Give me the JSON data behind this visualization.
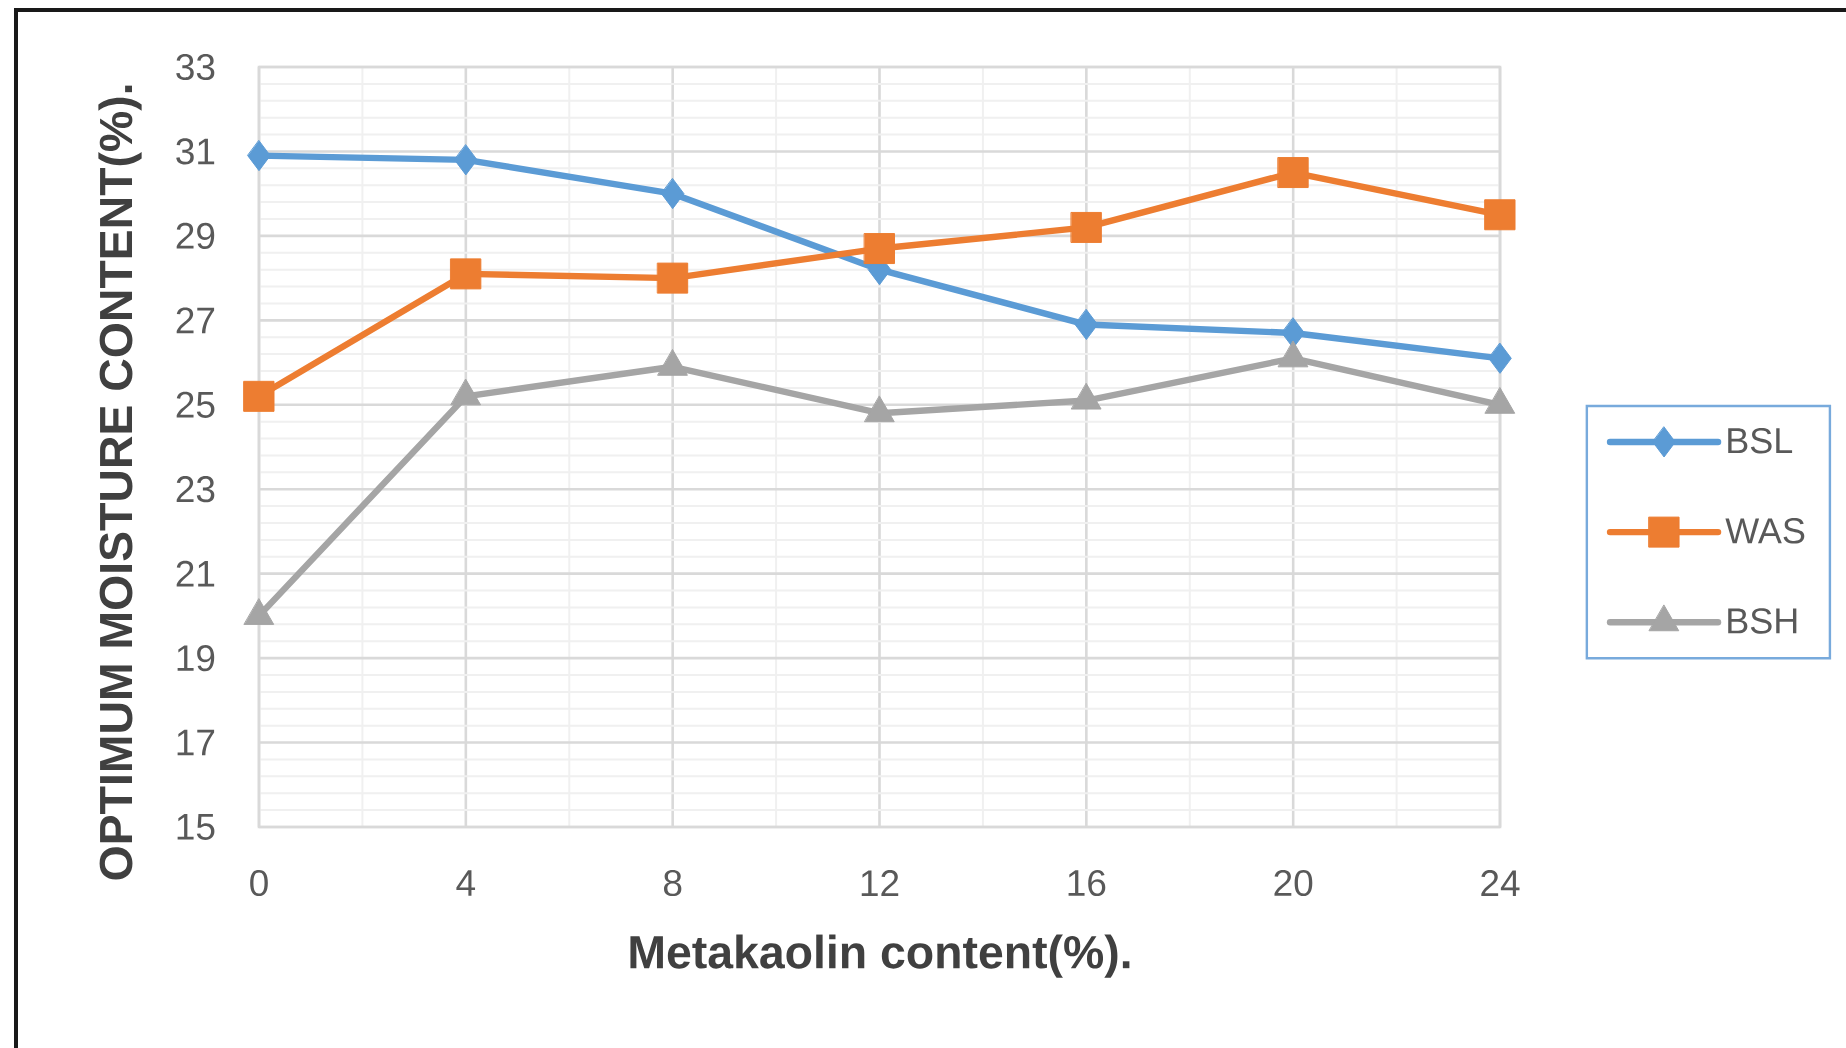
{
  "chart_data": {
    "type": "line",
    "xlabel": "Metakaolin content(%).",
    "ylabel": "OPTIMUM MOISTURE CONTENT(%).",
    "x": [
      0,
      4,
      8,
      12,
      16,
      20,
      24
    ],
    "xlim": [
      0,
      24
    ],
    "xticks": [
      0,
      4,
      8,
      12,
      16,
      20,
      24
    ],
    "ylim": [
      15,
      33
    ],
    "yticks": [
      15,
      17,
      19,
      21,
      23,
      25,
      27,
      29,
      31,
      33
    ],
    "grid": true,
    "legend": "right",
    "line_style": "solid",
    "series": [
      {
        "name": "BSL",
        "color": "#5b9bd5",
        "marker": "diamond",
        "values": [
          30.9,
          30.8,
          30.0,
          28.2,
          26.9,
          26.7,
          26.1
        ]
      },
      {
        "name": "WAS",
        "color": "#ed7d31",
        "marker": "square",
        "values": [
          25.2,
          28.1,
          28.0,
          28.7,
          29.2,
          30.5,
          29.5
        ]
      },
      {
        "name": "BSH",
        "color": "#a5a5a5",
        "marker": "triangle",
        "values": [
          20.0,
          25.2,
          25.9,
          24.8,
          25.1,
          26.1,
          25.0
        ]
      }
    ]
  }
}
